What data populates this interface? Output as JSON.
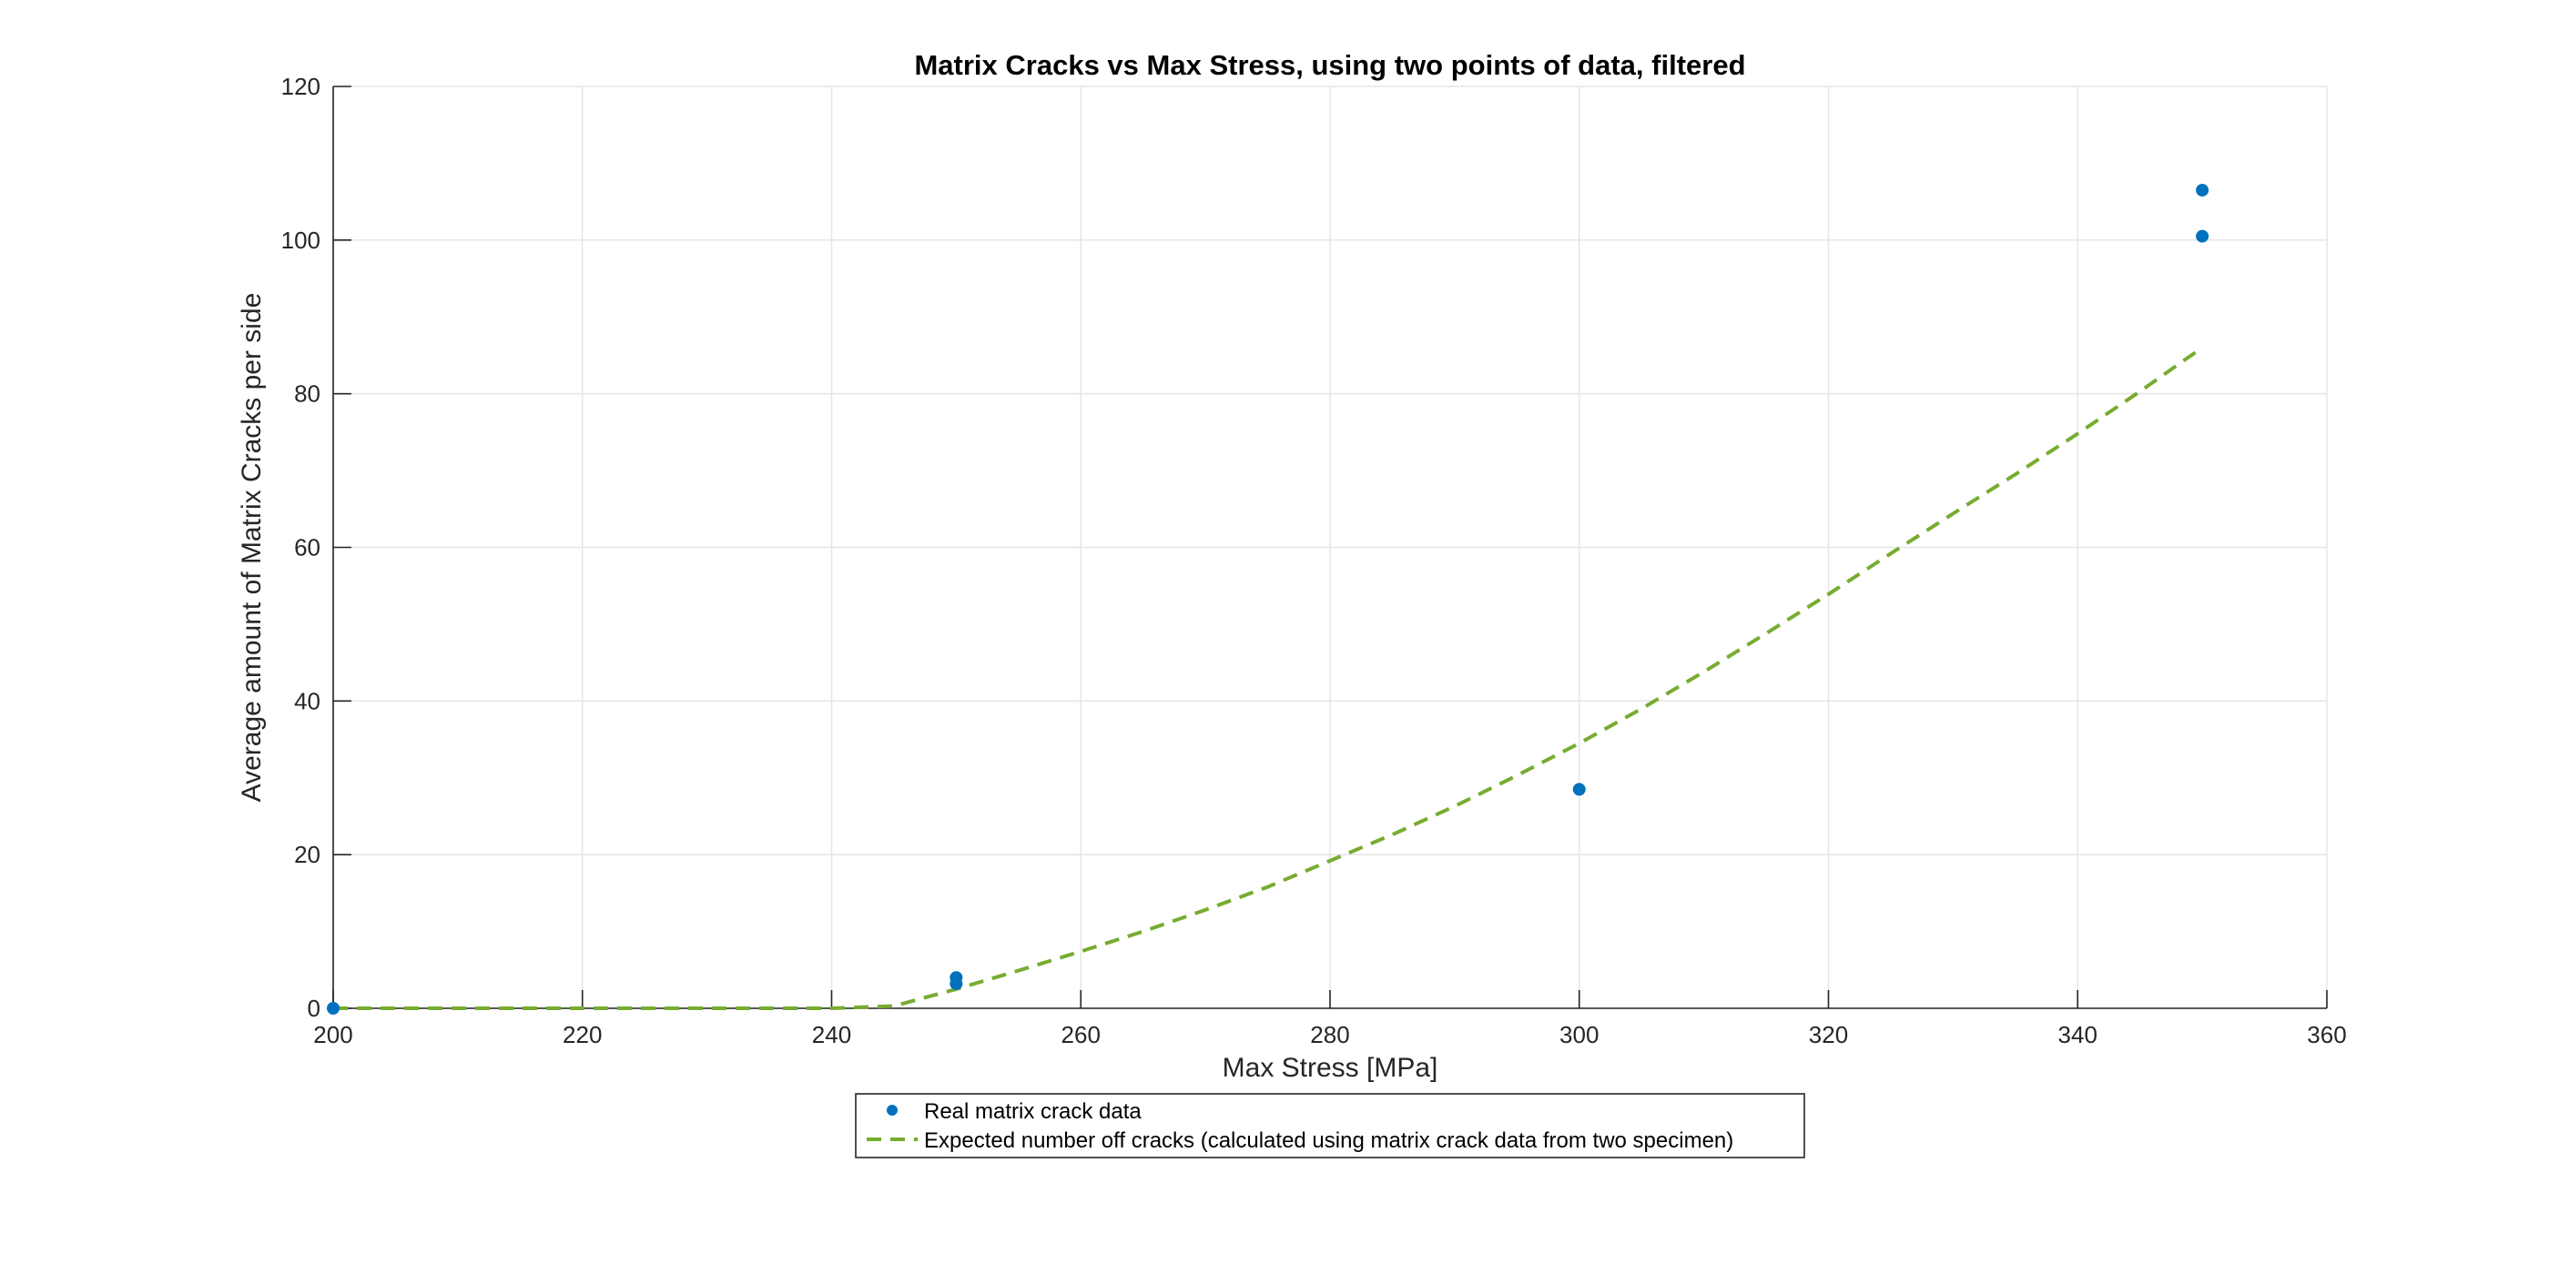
{
  "chart_data": {
    "type": "scatter",
    "title": "Matrix Cracks vs Max Stress, using two points of data, filtered",
    "xlabel": "Max Stress [MPa]",
    "ylabel": "Average amount of Matrix Cracks per side",
    "xlim": [
      200,
      360
    ],
    "ylim": [
      0,
      120
    ],
    "xticks": [
      200,
      220,
      240,
      260,
      280,
      300,
      320,
      340,
      360
    ],
    "yticks": [
      0,
      20,
      40,
      60,
      80,
      100,
      120
    ],
    "grid": true,
    "legend_position": "bottom-outside",
    "series": [
      {
        "name": "Real matrix crack data",
        "type": "scatter",
        "color": "#0072BD",
        "marker": "dot",
        "points": [
          [
            200,
            0
          ],
          [
            250,
            3.2
          ],
          [
            250,
            4.0
          ],
          [
            300,
            28.5
          ],
          [
            350,
            100.5
          ],
          [
            350,
            106.5
          ]
        ]
      },
      {
        "name": "Expected number off cracks (calculated using matrix crack data from two specimen)",
        "type": "line",
        "style": "dashed",
        "color": "#77AC30",
        "x": [
          200,
          205,
          210,
          215,
          220,
          225,
          230,
          235,
          240,
          245,
          250,
          255,
          260,
          265,
          270,
          275,
          280,
          285,
          290,
          295,
          300,
          305,
          310,
          315,
          320,
          325,
          330,
          335,
          340,
          345,
          350
        ],
        "y": [
          0,
          0,
          0,
          0,
          0,
          0,
          0,
          0,
          0,
          0.3,
          2.5,
          4.9,
          7.4,
          10.0,
          12.8,
          15.8,
          19.2,
          22.6,
          26.3,
          30.3,
          34.5,
          39.0,
          43.8,
          48.8,
          53.9,
          59.2,
          64.4,
          69.5,
          74.8,
          80.3,
          86.0
        ]
      }
    ]
  }
}
